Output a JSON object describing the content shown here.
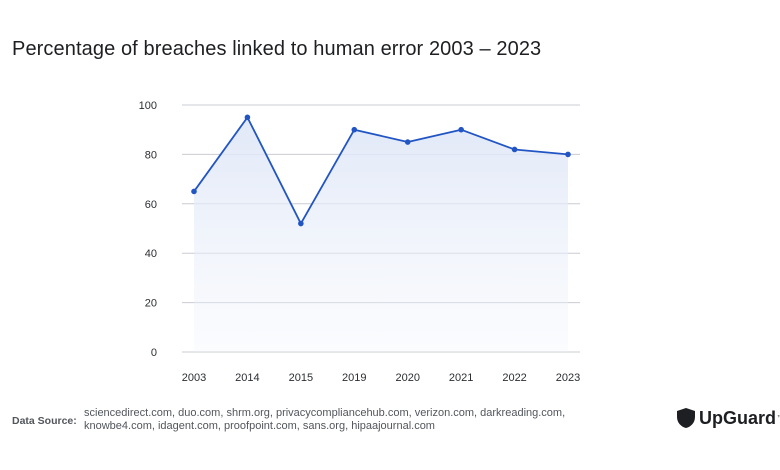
{
  "title": "Percentage of breaches linked to human error 2003 – 2023",
  "colors": {
    "line": "#2255c4",
    "fill": "#dfe7f7",
    "grid": "#c9ccd3"
  },
  "chart_data": {
    "type": "area",
    "title": "Percentage of breaches linked to human error 2003 – 2023",
    "categories": [
      "2003",
      "2014",
      "2015",
      "2019",
      "2020",
      "2021",
      "2022",
      "2023"
    ],
    "series": [
      {
        "values": [
          65,
          95,
          52,
          90,
          85,
          90,
          82,
          80
        ]
      }
    ],
    "yticks": [
      0,
      20,
      40,
      60,
      80,
      100
    ],
    "ylim": [
      0,
      100
    ],
    "grid": true
  },
  "footer": {
    "label": "Data Source:",
    "sources": "sciencedirect.com, duo.com, shrm.org, privacycompliancehub.com, verizon.com, darkreading.com, knowbe4.com, idagent.com, proofpoint.com, sans.org, hipaajournal.com"
  },
  "brand": {
    "name": "UpGuard",
    "icon": "shield-icon"
  }
}
